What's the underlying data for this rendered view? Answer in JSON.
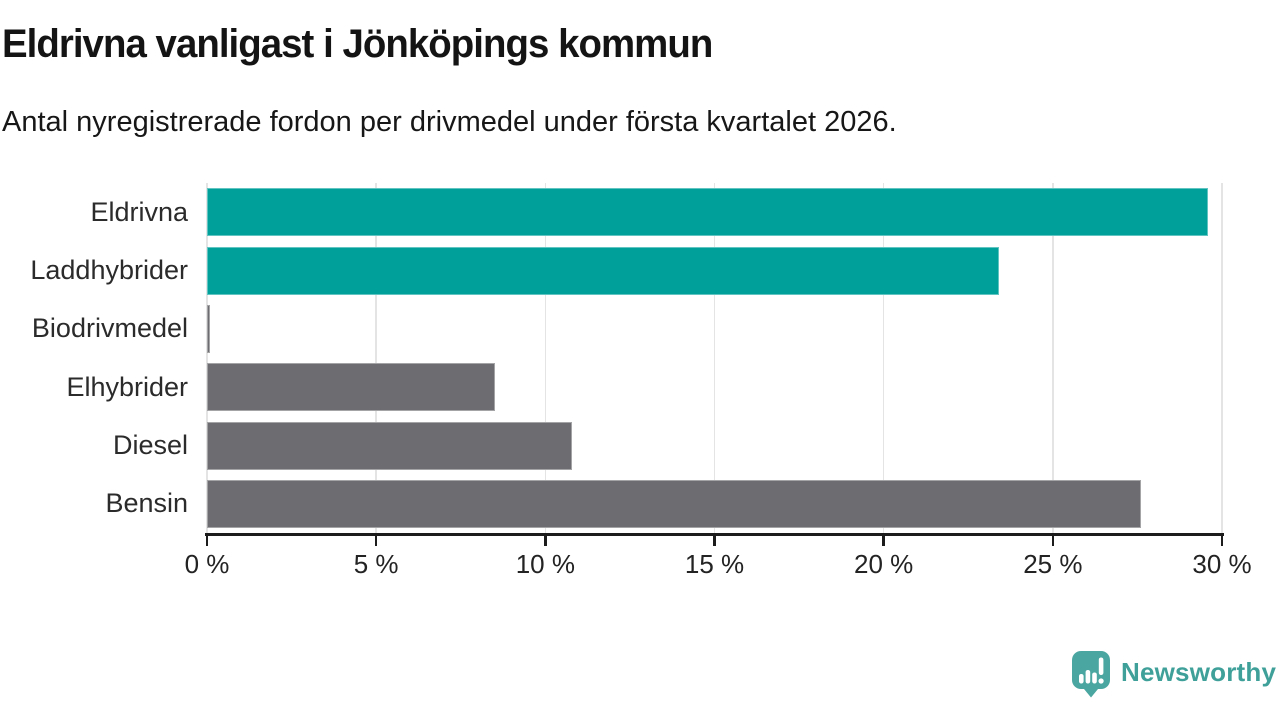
{
  "header": {
    "title": "Eldrivna vanligast i Jönköpings kommun",
    "subtitle": "Antal nyregistrerade fordon per drivmedel under första kvartalet 2026."
  },
  "chart_data": {
    "type": "bar",
    "orientation": "horizontal",
    "title": "Eldrivna vanligast i Jönköpings kommun",
    "subtitle": "Antal nyregistrerade fordon per drivmedel under första kvartalet 2026.",
    "categories": [
      "Eldrivna",
      "Laddhybrider",
      "Biodrivmedel",
      "Elhybrider",
      "Diesel",
      "Bensin"
    ],
    "values": [
      29.6,
      23.4,
      0.1,
      8.5,
      10.8,
      27.6
    ],
    "unit": "%",
    "xlabel": "",
    "ylabel": "",
    "xlim": [
      0,
      30
    ],
    "x_ticks": [
      0,
      5,
      10,
      15,
      20,
      25,
      30
    ],
    "x_tick_labels": [
      "0 %",
      "5 %",
      "10 %",
      "15 %",
      "20 %",
      "25 %",
      "30 %"
    ],
    "grid": true,
    "legend": false,
    "bar_colors": [
      "#00a09a",
      "#00a09a",
      "#6c6c71",
      "#6c6c71",
      "#6c6c71",
      "#6c6c71"
    ],
    "highlight_color": "#00a09a",
    "default_color": "#6c6c71"
  },
  "style": {
    "gridline_color": "#e4e4e4",
    "axis_color": "#1c1c1c",
    "label_color": "#2b2b2b"
  },
  "footer": {
    "brand": "Newsworthy",
    "brand_color": "#3fa09a",
    "logo_icon": "bar-chart-speech-bubble",
    "logo_color": "#4aa6a0"
  }
}
